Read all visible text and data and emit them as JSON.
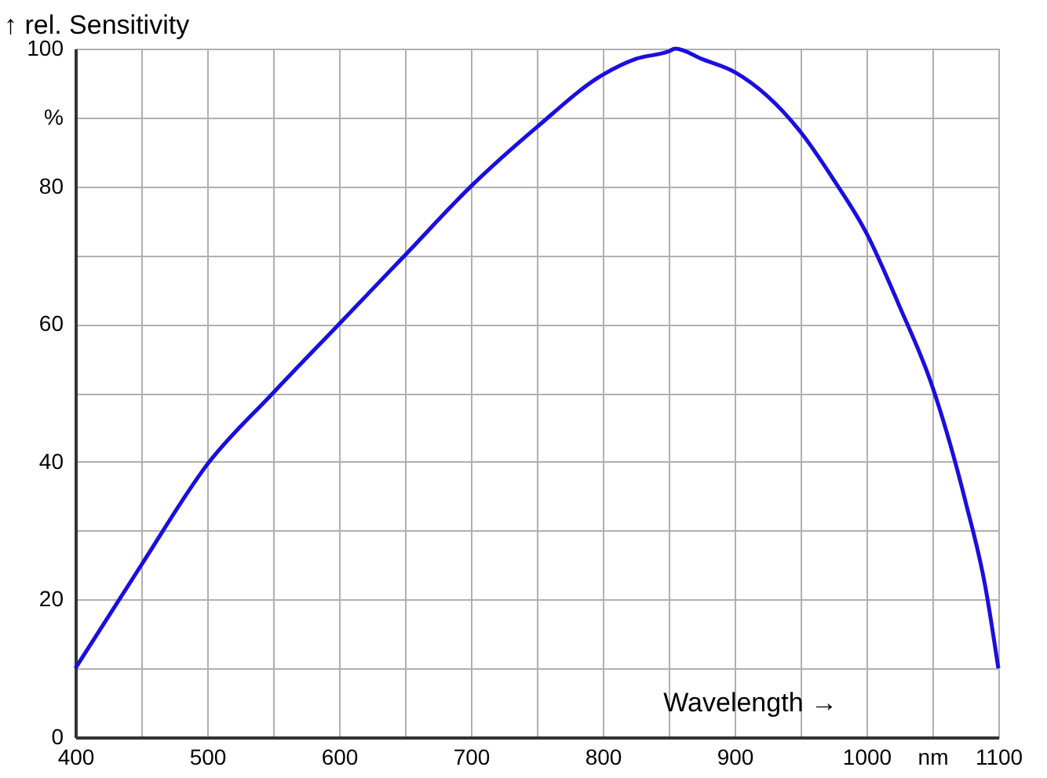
{
  "chart_data": {
    "type": "line",
    "xlabel": "Wavelength →",
    "ylabel": "↑ rel. Sensitivity",
    "x": [
      400,
      450,
      500,
      550,
      600,
      650,
      700,
      750,
      800,
      825,
      850,
      855,
      875,
      900,
      950,
      975,
      1000,
      1025,
      1050,
      1075,
      1090,
      1100
    ],
    "series": [
      {
        "color": "#1a0ee0",
        "values": [
          10,
          25,
          39.6,
          50,
          60,
          70,
          80,
          88.6,
          96.2,
          98.5,
          99.6,
          100,
          98.5,
          96.6,
          87.9,
          81,
          73.2,
          62.6,
          50.9,
          34.3,
          22,
          10
        ]
      }
    ],
    "xlim": [
      400,
      1100
    ],
    "ylim": [
      0,
      100
    ],
    "xticks": [
      400,
      {
        "value": 450,
        "label": null
      },
      500,
      {
        "value": 550,
        "label": null
      },
      600,
      {
        "value": 650,
        "label": null
      },
      700,
      {
        "value": 750,
        "label": null
      },
      800,
      {
        "value": 850,
        "label": null
      },
      900,
      {
        "value": 950,
        "label": null
      },
      1000,
      {
        "value": 1050,
        "label": "nm"
      },
      1100
    ],
    "yticks": [
      0,
      {
        "value": 10,
        "label": null
      },
      20,
      {
        "value": 30,
        "label": null
      },
      40,
      {
        "value": 50,
        "label": null
      },
      60,
      {
        "value": 70,
        "label": null
      },
      80,
      {
        "value": 90,
        "label": "%"
      },
      100
    ],
    "grid": true,
    "marker": "none",
    "line_style": "solid"
  }
}
